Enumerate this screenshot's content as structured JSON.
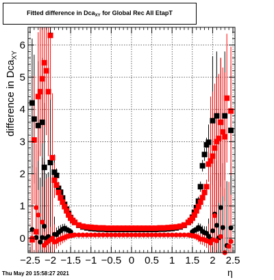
{
  "title": {
    "prefix": "Fitted difference in Dca",
    "sub": "XY",
    "suffix": "for Global Rec All EtapT"
  },
  "footer": {
    "date": "Thu May 20 15:58:27 2021"
  },
  "chart_data": {
    "type": "scatter",
    "title": "Fitted difference in Dca_XY for Global Rec All EtapT",
    "xlabel": "η",
    "ylabel": "difference in Dca_XY",
    "xlim": [
      -2.55,
      2.55
    ],
    "ylim": [
      -0.45,
      6.55
    ],
    "grid": true,
    "xticks": [
      -2.5,
      -2,
      -1.5,
      -1,
      -0.5,
      0,
      0.5,
      1,
      1.5,
      2,
      2.5
    ],
    "xtick_labels": [
      "−2.5",
      "−2",
      "−1.5",
      "−1",
      "−0.5",
      "0",
      "0.5",
      "1",
      "1.5",
      "2",
      "2.5"
    ],
    "yticks": [
      0,
      1,
      2,
      3,
      4,
      5,
      6
    ],
    "ytick_labels": [
      "0",
      "1",
      "2",
      "3",
      "4",
      "5",
      "6"
    ],
    "series": [
      {
        "marker": "circle",
        "color": "#000000",
        "x": [
          -2.45,
          -2.35,
          -2.25,
          -2.2,
          -2.15,
          -2.1,
          -2.05,
          -2.0,
          -1.95,
          -1.9,
          -1.85,
          -1.8,
          -1.75,
          -1.7,
          -1.65,
          -1.6,
          -1.55,
          -1.5,
          1.5,
          1.55,
          1.6,
          1.65,
          1.7,
          1.75,
          1.8,
          1.85,
          1.9,
          1.95,
          2.0,
          2.05,
          2.1,
          2.15,
          2.2,
          2.25,
          2.35,
          2.45
        ],
        "y": [
          0.27,
          0.02,
          -0.12,
          0.02,
          0.37,
          0.0,
          0.05,
          -0.05,
          -0.03,
          0.12,
          0.11,
          0.18,
          0.23,
          0.28,
          0.31,
          0.27,
          0.24,
          0.2,
          0.2,
          0.24,
          0.27,
          0.33,
          0.29,
          0.21,
          0.17,
          0.15,
          0.06,
          -0.03,
          0.23,
          0.75,
          0.4,
          0.01,
          0.95,
          0.33,
          -0.23,
          0.32
        ]
      },
      {
        "marker": "circle",
        "color": "#ff0000",
        "x": [
          -2.45,
          -2.35,
          -2.3,
          -2.2,
          -2.15,
          -2.1,
          -2.05,
          -2.0,
          -1.95,
          -1.9,
          -1.85,
          -1.8,
          -1.75,
          -1.7,
          -1.65,
          -1.6,
          -1.55,
          -1.5,
          -1.45,
          -1.4,
          -1.3,
          -1.2,
          -1.1,
          -1.0,
          -0.9,
          -0.8,
          -0.7,
          -0.6,
          -0.5,
          -0.4,
          -0.3,
          -0.2,
          -0.1,
          0.0,
          0.1,
          0.2,
          0.3,
          0.4,
          0.5,
          0.6,
          0.7,
          0.8,
          0.9,
          1.0,
          1.1,
          1.2,
          1.3,
          1.4,
          1.45,
          1.5,
          1.55,
          1.6,
          1.65,
          1.7,
          1.75,
          1.8,
          1.85,
          1.9,
          1.95,
          2.0,
          2.05,
          2.1,
          2.2,
          2.3,
          2.4,
          2.45
        ],
        "y": [
          0.0,
          0.95,
          0.72,
          0.5,
          -0.22,
          -0.15,
          -0.1,
          -0.05,
          0.0,
          -0.12,
          -0.1,
          -0.05,
          -0.03,
          0.0,
          0.02,
          0.05,
          0.07,
          0.08,
          0.09,
          0.1,
          0.1,
          0.1,
          0.1,
          0.1,
          0.1,
          0.1,
          0.1,
          0.1,
          0.1,
          0.1,
          0.1,
          0.1,
          0.1,
          0.1,
          0.1,
          0.1,
          0.1,
          0.1,
          0.1,
          0.1,
          0.1,
          0.1,
          0.1,
          0.1,
          0.1,
          0.1,
          0.1,
          0.1,
          0.09,
          0.08,
          0.07,
          0.05,
          0.02,
          -0.03,
          -0.03,
          -0.05,
          -0.08,
          -0.1,
          -0.15,
          -0.05,
          0.7,
          -0.08,
          0.05,
          -0.45,
          -0.25,
          -0.1
        ]
      },
      {
        "marker": "square",
        "color": "#000000",
        "x": [
          -2.45,
          -2.4,
          -2.3,
          -2.2,
          -2.15,
          -2.0,
          -1.9,
          -1.85,
          -1.8,
          -1.75,
          -1.7,
          -1.65,
          -1.6,
          -1.55,
          -1.5,
          -1.45,
          -1.4,
          -1.3,
          -1.2,
          -1.1,
          -1.0,
          -0.9,
          -0.8,
          -0.7,
          -0.6,
          -0.5,
          -0.4,
          -0.3,
          -0.2,
          -0.1,
          0.0,
          0.1,
          0.2,
          0.3,
          0.4,
          0.5,
          0.6,
          0.7,
          0.8,
          0.9,
          1.0,
          1.1,
          1.2,
          1.3,
          1.4,
          1.45,
          1.5,
          1.55,
          1.6,
          1.65,
          1.7,
          1.75,
          1.8,
          1.85,
          1.9,
          2.0,
          2.1,
          2.2,
          2.3,
          2.45
        ],
        "y": [
          4.2,
          3.7,
          3.5,
          3.6,
          2.2,
          2.35,
          2.05,
          1.95,
          1.55,
          1.43,
          1.25,
          1.05,
          0.9,
          0.77,
          0.64,
          0.55,
          0.49,
          0.4,
          0.35,
          0.32,
          0.3,
          0.29,
          0.28,
          0.28,
          0.27,
          0.27,
          0.27,
          0.27,
          0.27,
          0.27,
          0.27,
          0.27,
          0.27,
          0.27,
          0.27,
          0.27,
          0.27,
          0.28,
          0.28,
          0.29,
          0.3,
          0.32,
          0.35,
          0.4,
          0.49,
          0.55,
          0.65,
          0.8,
          0.95,
          1.15,
          1.6,
          2.25,
          2.6,
          2.9,
          2.98,
          3.65,
          3.8,
          3.6,
          3.8,
          3.35
        ]
      },
      {
        "marker": "square",
        "color": "#ff0000",
        "x": [
          -2.45,
          -2.4,
          -2.35,
          -2.3,
          -2.25,
          -2.2,
          -2.15,
          -2.1,
          -2.05,
          -2.0,
          -1.95,
          -1.9,
          -1.85,
          -1.8,
          -1.75,
          -1.7,
          -1.65,
          -1.6,
          -1.55,
          -1.5,
          -1.45,
          -1.4,
          -1.3,
          -1.2,
          -1.1,
          -1.0,
          -0.9,
          -0.8,
          -0.7,
          -0.6,
          -0.5,
          -0.4,
          -0.3,
          -0.2,
          -0.1,
          0.0,
          0.1,
          0.2,
          0.3,
          0.4,
          0.5,
          0.6,
          0.7,
          0.8,
          0.9,
          1.0,
          1.1,
          1.2,
          1.3,
          1.4,
          1.45,
          1.5,
          1.55,
          1.6,
          1.65,
          1.7,
          1.75,
          1.8,
          1.85,
          1.9,
          1.95,
          2.0,
          2.05,
          2.1,
          2.15,
          2.2,
          2.25,
          2.3,
          2.35,
          2.45
        ],
        "y": [
          -0.05,
          3.05,
          0.2,
          4.4,
          4.55,
          4.95,
          5.45,
          5.2,
          4.55,
          6.3,
          2.5,
          1.8,
          1.65,
          1.42,
          1.25,
          1.12,
          0.98,
          0.85,
          0.72,
          0.62,
          0.55,
          0.49,
          0.41,
          0.37,
          0.35,
          0.34,
          0.33,
          0.32,
          0.32,
          0.31,
          0.31,
          0.31,
          0.31,
          0.31,
          0.31,
          0.31,
          0.31,
          0.31,
          0.31,
          0.31,
          0.31,
          0.31,
          0.32,
          0.32,
          0.33,
          0.34,
          0.35,
          0.37,
          0.41,
          0.49,
          0.55,
          0.62,
          0.72,
          0.85,
          0.98,
          1.12,
          1.26,
          1.42,
          1.6,
          2.3,
          2.4,
          2.55,
          2.8,
          3.0,
          3.1,
          3.6,
          3.3,
          3.15,
          4.35,
          3.95
        ]
      }
    ]
  }
}
